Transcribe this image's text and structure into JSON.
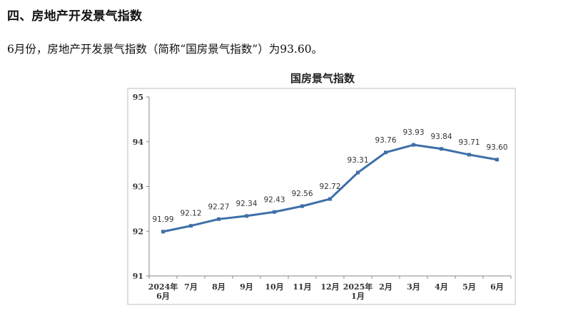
{
  "heading": "四、房地产开发景气指数",
  "paragraph": "6月份，房地产开发景气指数（简称“国房景气指数”）为93.60。",
  "colors": {
    "line": "#3e6fa8",
    "axis": "#888888",
    "frame": "#bdbdbd"
  },
  "chart_data": {
    "type": "line",
    "title": "国房景气指数",
    "xlabel": "",
    "ylabel": "",
    "ylim": [
      91,
      95
    ],
    "yticks": [
      91,
      92,
      93,
      94,
      95
    ],
    "grid": false,
    "legend": "none",
    "categories": [
      [
        "2024年",
        "6月"
      ],
      [
        "7月"
      ],
      [
        "8月"
      ],
      [
        "9月"
      ],
      [
        "10月"
      ],
      [
        "11月"
      ],
      [
        "12月"
      ],
      [
        "2025年",
        "1月"
      ],
      [
        "2月"
      ],
      [
        "3月"
      ],
      [
        "4月"
      ],
      [
        "5月"
      ],
      [
        "6月"
      ]
    ],
    "series": [
      {
        "values": [
          91.99,
          92.12,
          92.27,
          92.34,
          92.43,
          92.56,
          92.72,
          93.31,
          93.76,
          93.93,
          93.84,
          93.71,
          93.6
        ],
        "labels": [
          "91.99",
          "92.12",
          "92.27",
          "92.34",
          "92.43",
          "92.56",
          "92.72",
          "93.31",
          "93.76",
          "93.93",
          "93.84",
          "93.71",
          "93.60"
        ]
      }
    ]
  }
}
